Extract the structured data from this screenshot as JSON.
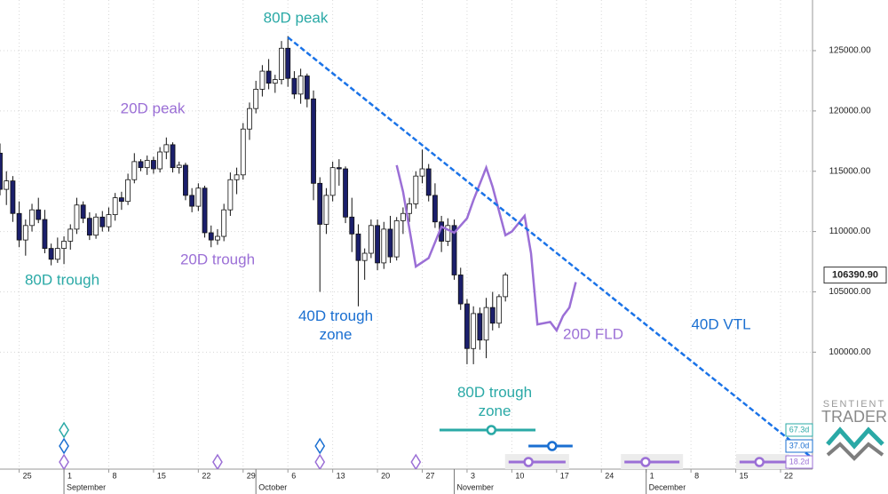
{
  "chart_data": {
    "type": "candlestick",
    "up_color": "#ffffff",
    "down_color": "#1b1f6b",
    "x": [
      -3,
      -2,
      -1,
      0,
      1,
      2,
      3,
      4,
      5,
      6,
      7,
      8,
      9,
      10,
      11,
      12,
      13,
      14,
      15,
      16,
      17,
      18,
      19,
      20,
      21,
      22,
      23,
      24,
      25,
      26,
      27,
      28,
      29,
      30,
      31,
      32,
      33,
      34,
      35,
      36,
      37,
      38,
      39,
      40,
      41,
      42,
      43,
      44,
      45,
      46,
      47,
      48,
      49,
      50,
      51,
      52,
      53,
      54,
      55,
      56,
      57,
      58,
      59,
      60,
      61,
      62,
      63,
      64,
      65,
      66,
      67,
      68,
      69,
      70,
      71,
      72,
      73,
      74,
      75,
      76
    ],
    "open": [
      116500,
      113500,
      114200,
      111500,
      109300,
      110500,
      111800,
      111000,
      108600,
      107700,
      108600,
      109200,
      110200,
      112200,
      111100,
      109700,
      111200,
      110400,
      111400,
      112800,
      112500,
      114300,
      115800,
      115300,
      115900,
      115200,
      116600,
      117200,
      115300,
      115500,
      113000,
      112100,
      113600,
      109900,
      109300,
      109600,
      111800,
      114300,
      114700,
      118500,
      120200,
      121800,
      123300,
      122300,
      122600,
      125200,
      122700,
      121400,
      122900,
      121000,
      114000,
      110600,
      113000,
      115300,
      115200,
      111200,
      109800,
      107600,
      108200,
      110500,
      107400,
      110200,
      107900,
      110900,
      111500,
      112300,
      114600,
      115200,
      113000,
      110800,
      109200,
      110500,
      106400,
      104000,
      100300,
      103200,
      101000,
      103700,
      102400,
      104600
    ],
    "high": [
      117300,
      115000,
      114600,
      112500,
      111000,
      112300,
      112800,
      111800,
      109000,
      109500,
      109600,
      110600,
      112800,
      112500,
      111600,
      111500,
      111700,
      112000,
      113200,
      113300,
      114800,
      116500,
      116000,
      116300,
      116200,
      117000,
      117800,
      117400,
      115800,
      115700,
      113600,
      114000,
      113800,
      110500,
      110200,
      112300,
      114900,
      115300,
      119000,
      120700,
      122500,
      123800,
      124300,
      123000,
      125800,
      126200,
      123300,
      123500,
      123100,
      121700,
      114500,
      113600,
      115800,
      116000,
      115400,
      112800,
      110600,
      108600,
      111000,
      111000,
      110800,
      111300,
      111200,
      112000,
      112800,
      115000,
      116800,
      115600,
      114000,
      111300,
      111100,
      111000,
      107000,
      104400,
      103800,
      103700,
      104500,
      105000,
      104800,
      106600
    ],
    "low": [
      113000,
      112200,
      110800,
      108700,
      108000,
      110000,
      110700,
      108200,
      107200,
      107400,
      107300,
      108500,
      109800,
      110700,
      109300,
      109400,
      110000,
      110000,
      110900,
      111800,
      112200,
      114000,
      115000,
      114700,
      114800,
      114900,
      116000,
      114900,
      114800,
      112600,
      111600,
      111700,
      109500,
      108700,
      108900,
      109200,
      111300,
      113100,
      114300,
      117600,
      119800,
      121200,
      121800,
      121500,
      122200,
      122000,
      121000,
      120600,
      120300,
      112600,
      105000,
      109800,
      112500,
      113800,
      110700,
      108300,
      103800,
      106000,
      107800,
      106800,
      106900,
      107400,
      107600,
      109800,
      110800,
      111900,
      114000,
      112500,
      110300,
      108300,
      108800,
      106000,
      103500,
      99000,
      99000,
      100200,
      99500,
      101800,
      102000,
      104200
    ],
    "close": [
      113500,
      114200,
      111500,
      109300,
      110500,
      111800,
      111000,
      108600,
      107700,
      108600,
      109200,
      110200,
      112200,
      111100,
      109700,
      111200,
      110400,
      111400,
      112800,
      112500,
      114300,
      115800,
      115300,
      115900,
      115200,
      116600,
      117200,
      115300,
      115500,
      113000,
      112100,
      113600,
      109900,
      109300,
      109600,
      111800,
      114300,
      114700,
      118500,
      120200,
      121800,
      123300,
      122300,
      122600,
      125200,
      122700,
      121400,
      122900,
      121000,
      114000,
      110600,
      113000,
      115300,
      115200,
      111200,
      109800,
      107600,
      108200,
      110500,
      107400,
      110200,
      107900,
      110900,
      111500,
      112300,
      114600,
      115200,
      113000,
      110800,
      109200,
      110500,
      106400,
      104000,
      100300,
      103200,
      101000,
      103700,
      102400,
      104600,
      106400
    ],
    "xlim": [
      -3,
      124
    ],
    "ylim": [
      90300,
      129200
    ],
    "xticks": [
      {
        "value": 0,
        "label": "25"
      },
      {
        "value": 7,
        "label": "1"
      },
      {
        "value": 14,
        "label": "8"
      },
      {
        "value": 21,
        "label": "15"
      },
      {
        "value": 28,
        "label": "22"
      },
      {
        "value": 35,
        "label": "29"
      },
      {
        "value": 42,
        "label": "6"
      },
      {
        "value": 49,
        "label": "13"
      },
      {
        "value": 56,
        "label": "20"
      },
      {
        "value": 63,
        "label": "27"
      },
      {
        "value": 70,
        "label": "3"
      },
      {
        "value": 77,
        "label": "10"
      },
      {
        "value": 84,
        "label": "17"
      },
      {
        "value": 91,
        "label": "24"
      },
      {
        "value": 98,
        "label": "1"
      },
      {
        "value": 105,
        "label": "8"
      },
      {
        "value": 112,
        "label": "15"
      },
      {
        "value": 119,
        "label": "22"
      }
    ],
    "months": [
      {
        "value": 7,
        "label": "September"
      },
      {
        "value": 37,
        "label": "October"
      },
      {
        "value": 68,
        "label": "November"
      },
      {
        "value": 98,
        "label": "December"
      }
    ],
    "yticks": [
      {
        "value": 100000,
        "label": "100000.00"
      },
      {
        "value": 105000,
        "label": "105000.00"
      },
      {
        "value": 110000,
        "label": "110000.00"
      },
      {
        "value": 115000,
        "label": "115000.00"
      },
      {
        "value": 120000,
        "label": "120000.00"
      },
      {
        "value": 125000,
        "label": "125000.00"
      }
    ],
    "grid": true,
    "last_price": {
      "value": 106390.9,
      "label": "106390.90"
    },
    "trendline": {
      "x": [
        42,
        124
      ],
      "y": [
        126100,
        91200
      ],
      "color": "#1a73e8"
    },
    "fld": {
      "x": [
        59,
        60,
        62,
        64,
        66,
        68,
        70,
        71,
        73,
        74,
        76,
        77,
        79,
        80,
        81,
        83,
        84,
        85,
        86,
        87
      ],
      "y": [
        115500,
        113300,
        107100,
        107800,
        110400,
        109900,
        111100,
        112600,
        115300,
        113700,
        109700,
        110000,
        111300,
        108200,
        102300,
        102500,
        101800,
        103000,
        103700,
        105800
      ],
      "color": "#9b6fd6"
    },
    "annotations": [
      {
        "text": "80D peak",
        "color": "#2aa9a6"
      },
      {
        "text": "20D peak",
        "color": "#9b6fd6"
      },
      {
        "text": "80D trough",
        "color": "#2aa9a6"
      },
      {
        "text": "20D trough",
        "color": "#9b6fd6"
      },
      {
        "text": "40D trough\nzone",
        "color": "#1a6fd1"
      },
      {
        "text": "80D trough\nzone",
        "color": "#2aa9a6"
      },
      {
        "text": "20D FLD",
        "color": "#9b6fd6"
      },
      {
        "text": "40D VTL",
        "color": "#1a6fd1"
      }
    ],
    "cycles": [
      {
        "label": "67.3d",
        "color": "#2aa9a6",
        "troughs": [
          7
        ],
        "bands": [
          {
            "from": 65.7,
            "to": 80.7,
            "center": 73.8
          }
        ]
      },
      {
        "label": "37.0d",
        "color": "#1a6fd1",
        "troughs": [
          7,
          47
        ],
        "bands": [
          {
            "from": 79.6,
            "to": 86.5,
            "center": 83.3
          }
        ]
      },
      {
        "label": "18.2d",
        "color": "#9b6fd6",
        "troughs": [
          7,
          31,
          47,
          62
        ],
        "bands": [
          {
            "from": 76.5,
            "to": 85.4,
            "center": 79.6
          },
          {
            "from": 94.6,
            "to": 103.2,
            "center": 97.9
          },
          {
            "from": 112.6,
            "to": 119.8,
            "center": 115.7
          }
        ]
      }
    ],
    "logo": {
      "line1": "SENTIENT",
      "line2": "TRADER"
    }
  }
}
